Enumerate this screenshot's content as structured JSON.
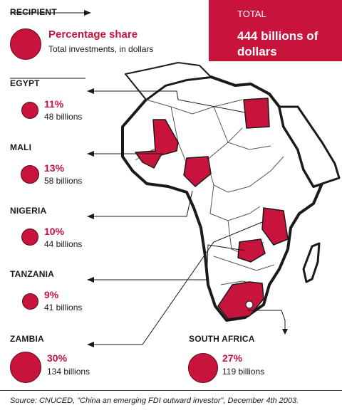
{
  "legend": {
    "header": "RECIPIENT",
    "title": "Percentage share",
    "subtitle": "Total investments, in dollars"
  },
  "total": {
    "label": "TOTAL",
    "value": "444 billions of dollars"
  },
  "countries": [
    {
      "name": "EGYPT",
      "share": "11%",
      "amount": "48 billions"
    },
    {
      "name": "MALI",
      "share": "13%",
      "amount": "58 billions"
    },
    {
      "name": "NIGERIA",
      "share": "10%",
      "amount": "44 billions"
    },
    {
      "name": "TANZANIA",
      "share": "9%",
      "amount": "41 billions"
    },
    {
      "name": "ZAMBIA",
      "share": "30%",
      "amount": "134 billions"
    },
    {
      "name": "SOUTH AFRICA",
      "share": "27%",
      "amount": "119 billions"
    }
  ],
  "source": "Source: CNUCED, \"China an emerging FDI outward investor\", December 4th 2003.",
  "colors": {
    "highlight": "#c8143c",
    "outline": "#1a1a1a",
    "land": "#ffffff",
    "sea": "#ffffff"
  }
}
